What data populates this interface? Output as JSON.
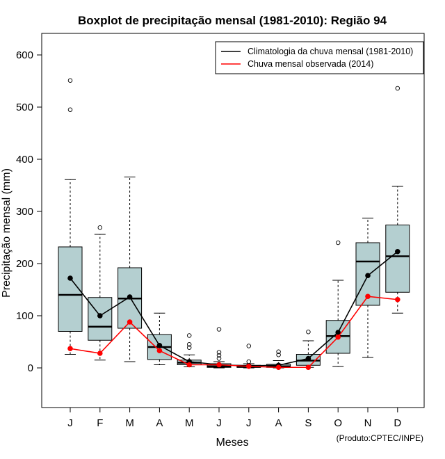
{
  "chart_data": {
    "type": "boxplot",
    "title": "Boxplot de precipitação mensal (1981-2010): Região 94",
    "xlabel": "Meses",
    "ylabel": "Precipitação mensal (mm)",
    "ylim": [
      -75,
      675
    ],
    "yticks": [
      0,
      100,
      200,
      300,
      400,
      500,
      600
    ],
    "categories": [
      "J",
      "F",
      "M",
      "A",
      "M",
      "J",
      "J",
      "A",
      "S",
      "O",
      "N",
      "D"
    ],
    "boxes": [
      {
        "whisker_low": 26,
        "q1": 70,
        "median": 140,
        "q3": 232,
        "whisker_high": 361,
        "outliers": [
          495,
          551
        ]
      },
      {
        "whisker_low": 15,
        "q1": 53,
        "median": 79,
        "q3": 135,
        "whisker_high": 256,
        "outliers": [
          269
        ]
      },
      {
        "whisker_low": 12,
        "q1": 76,
        "median": 133,
        "q3": 192,
        "whisker_high": 366,
        "outliers": []
      },
      {
        "whisker_low": 6,
        "q1": 16,
        "median": 40,
        "q3": 64,
        "whisker_high": 105,
        "outliers": []
      },
      {
        "whisker_low": 2,
        "q1": 6,
        "median": 10,
        "q3": 15,
        "whisker_high": 25,
        "outliers": [
          39,
          45,
          62
        ]
      },
      {
        "whisker_low": 0,
        "q1": 1,
        "median": 3,
        "q3": 8,
        "whisker_high": 12,
        "outliers": [
          18,
          24,
          30,
          74
        ]
      },
      {
        "whisker_low": 0,
        "q1": 1,
        "median": 2,
        "q3": 5,
        "whisker_high": 8,
        "outliers": [
          12,
          42
        ]
      },
      {
        "whisker_low": 0,
        "q1": 1,
        "median": 3,
        "q3": 7,
        "whisker_high": 14,
        "outliers": [
          25,
          31
        ]
      },
      {
        "whisker_low": 1,
        "q1": 5,
        "median": 14,
        "q3": 26,
        "whisker_high": 52,
        "outliers": [
          69
        ]
      },
      {
        "whisker_low": 3,
        "q1": 28,
        "median": 61,
        "q3": 91,
        "whisker_high": 168,
        "outliers": [
          240
        ]
      },
      {
        "whisker_low": 20,
        "q1": 120,
        "median": 204,
        "q3": 240,
        "whisker_high": 287,
        "outliers": []
      },
      {
        "whisker_low": 105,
        "q1": 145,
        "median": 214,
        "q3": 274,
        "whisker_high": 348,
        "outliers": [
          536
        ]
      }
    ],
    "series": [
      {
        "name": "Climatologia da chuva mensal (1981-2010)",
        "color": "#000000",
        "values": [
          172,
          100,
          136,
          43,
          12,
          6,
          4,
          5,
          18,
          68,
          177,
          223
        ]
      },
      {
        "name": "Chuva mensal observada (2014)",
        "color": "#ff0000",
        "values": [
          37,
          28,
          88,
          33,
          6,
          6,
          3,
          1,
          1,
          59,
          137,
          131
        ]
      }
    ],
    "legend_position": "top-right",
    "box_fill": "#b4cfd0",
    "credit": "(Produto:CPTEC/INPE)"
  }
}
